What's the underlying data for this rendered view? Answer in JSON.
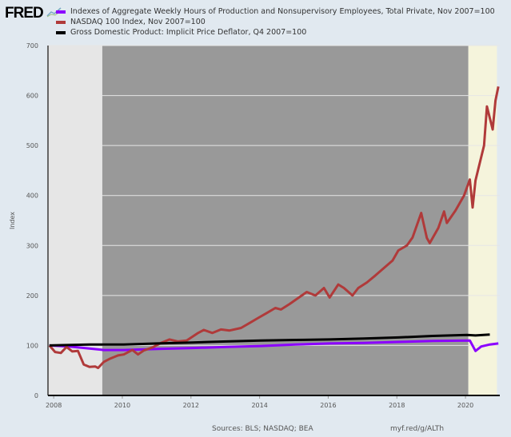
{
  "header": {
    "logo": "FRED"
  },
  "chart_data": {
    "type": "line",
    "title": "",
    "xlabel": "",
    "ylabel": "Index",
    "ylim": [
      0,
      700
    ],
    "xlim": [
      "2007-11",
      "2020-12"
    ],
    "grid": "horizontal",
    "yticks": [
      "0",
      "100",
      "200",
      "300",
      "400",
      "500",
      "600",
      "700"
    ],
    "xticks": [
      "2008",
      "2010",
      "2012",
      "2014",
      "2016",
      "2018",
      "2020"
    ],
    "shaded_periods": [
      {
        "from": "2007-11",
        "to": "2009-06",
        "color": "#e6e6e6"
      },
      {
        "from": "2009-06",
        "to": "2020-02",
        "color": "#999999"
      },
      {
        "from": "2020-02",
        "to": "2020-12",
        "color": "#f5f4dc"
      }
    ],
    "series": [
      {
        "name": "Indexes of Aggregate Weekly Hours of Production and Nonsupervisory Employees, Total Private, Nov 2007=100",
        "color": "#8b00ff",
        "points": [
          [
            "2007-11",
            100
          ],
          [
            "2008-06",
            98
          ],
          [
            "2009-01",
            94
          ],
          [
            "2009-06",
            91
          ],
          [
            "2010-01",
            91
          ],
          [
            "2011-01",
            93
          ],
          [
            "2012-01",
            95
          ],
          [
            "2013-01",
            97
          ],
          [
            "2014-01",
            99
          ],
          [
            "2015-01",
            102
          ],
          [
            "2016-01",
            104
          ],
          [
            "2017-01",
            105
          ],
          [
            "2018-01",
            107
          ],
          [
            "2019-01",
            109
          ],
          [
            "2020-02",
            110
          ],
          [
            "2020-04",
            89
          ],
          [
            "2020-06",
            98
          ],
          [
            "2020-09",
            102
          ],
          [
            "2020-12",
            104
          ]
        ]
      },
      {
        "name": "NASDAQ 100 Index, Nov 2007=100",
        "color": "#b03a3a",
        "points": [
          [
            "2007-11",
            100
          ],
          [
            "2008-01",
            87
          ],
          [
            "2008-03",
            85
          ],
          [
            "2008-05",
            97
          ],
          [
            "2008-07",
            88
          ],
          [
            "2008-09",
            89
          ],
          [
            "2008-11",
            62
          ],
          [
            "2009-01",
            57
          ],
          [
            "2009-03",
            58
          ],
          [
            "2009-04",
            55
          ],
          [
            "2009-06",
            67
          ],
          [
            "2009-08",
            73
          ],
          [
            "2009-11",
            80
          ],
          [
            "2010-01",
            82
          ],
          [
            "2010-04",
            91
          ],
          [
            "2010-06",
            82
          ],
          [
            "2010-08",
            90
          ],
          [
            "2010-11",
            96
          ],
          [
            "2011-02",
            105
          ],
          [
            "2011-05",
            112
          ],
          [
            "2011-08",
            108
          ],
          [
            "2011-11",
            110
          ],
          [
            "2012-03",
            125
          ],
          [
            "2012-05",
            131
          ],
          [
            "2012-08",
            125
          ],
          [
            "2012-11",
            132
          ],
          [
            "2013-02",
            130
          ],
          [
            "2013-06",
            135
          ],
          [
            "2013-09",
            145
          ],
          [
            "2013-12",
            155
          ],
          [
            "2014-03",
            165
          ],
          [
            "2014-06",
            175
          ],
          [
            "2014-08",
            172
          ],
          [
            "2014-11",
            183
          ],
          [
            "2015-02",
            195
          ],
          [
            "2015-05",
            207
          ],
          [
            "2015-08",
            200
          ],
          [
            "2015-11",
            215
          ],
          [
            "2016-01",
            196
          ],
          [
            "2016-04",
            222
          ],
          [
            "2016-06",
            215
          ],
          [
            "2016-09",
            200
          ],
          [
            "2016-11",
            215
          ],
          [
            "2017-02",
            226
          ],
          [
            "2017-05",
            240
          ],
          [
            "2017-08",
            255
          ],
          [
            "2017-11",
            270
          ],
          [
            "2018-01",
            290
          ],
          [
            "2018-04",
            300
          ],
          [
            "2018-06",
            316
          ],
          [
            "2018-09",
            365
          ],
          [
            "2018-11",
            315
          ],
          [
            "2018-12",
            305
          ],
          [
            "2019-03",
            335
          ],
          [
            "2019-05",
            368
          ],
          [
            "2019-06",
            345
          ],
          [
            "2019-09",
            370
          ],
          [
            "2019-12",
            400
          ],
          [
            "2020-02",
            432
          ],
          [
            "2020-03",
            376
          ],
          [
            "2020-04",
            430
          ],
          [
            "2020-07",
            500
          ],
          [
            "2020-08",
            578
          ],
          [
            "2020-10",
            532
          ],
          [
            "2020-11",
            590
          ],
          [
            "2020-12",
            618
          ]
        ]
      },
      {
        "name": "Gross Domestic Product: Implicit Price Deflator, Q4 2007=100",
        "color": "#000000",
        "points": [
          [
            "2007-11",
            100
          ],
          [
            "2009-01",
            102
          ],
          [
            "2010-01",
            102
          ],
          [
            "2011-01",
            104
          ],
          [
            "2012-01",
            106
          ],
          [
            "2013-01",
            108
          ],
          [
            "2014-01",
            110
          ],
          [
            "2015-01",
            111
          ],
          [
            "2016-01",
            112
          ],
          [
            "2017-01",
            114
          ],
          [
            "2018-01",
            116
          ],
          [
            "2019-01",
            119
          ],
          [
            "2020-01",
            121
          ],
          [
            "2020-04",
            120
          ],
          [
            "2020-09",
            122
          ]
        ]
      }
    ]
  },
  "footer": {
    "sources": "Sources: BLS; NASDAQ; BEA",
    "link": "myf.red/g/ALTh"
  }
}
